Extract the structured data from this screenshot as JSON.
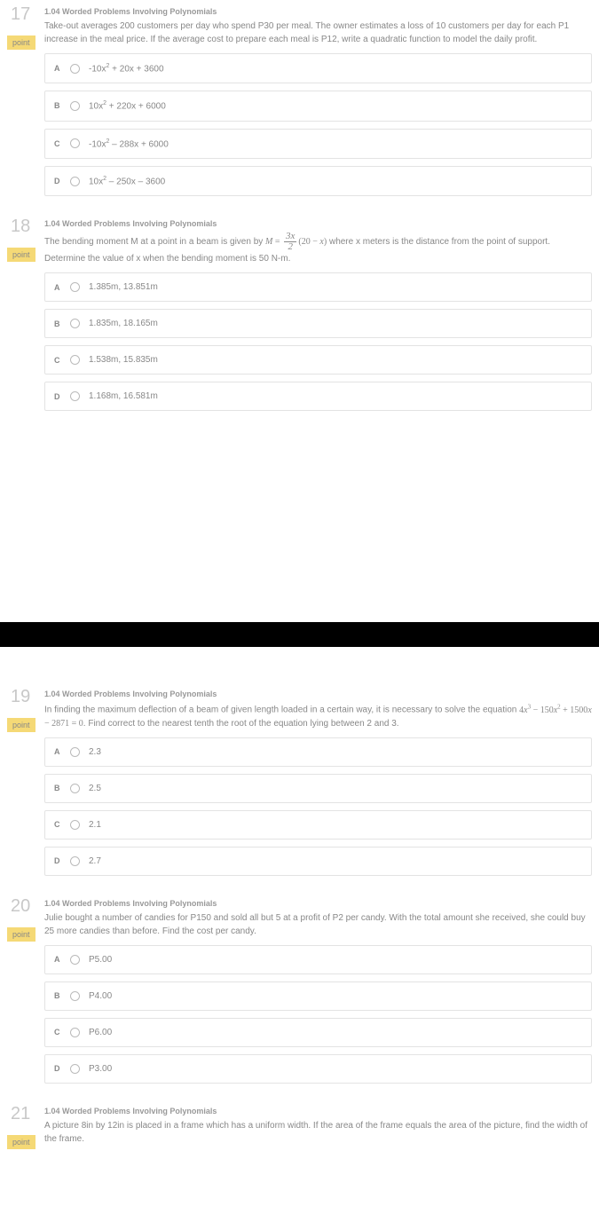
{
  "colors": {
    "text": "#888888",
    "muted_num": "#c8c8c8",
    "border": "#e3e3e3",
    "badge_bg": "#f5d976",
    "divider": "#000000",
    "bg": "#ffffff"
  },
  "typography": {
    "base_pt": 10,
    "qnum_pt": 20,
    "topic_pt": 9
  },
  "questions": [
    {
      "number": "17",
      "badge": "point",
      "topic": "1.04 Worded Problems Involving Polynomials",
      "prompt_parts": [
        "Take-out averages 200 customers per day who spend P30 per meal. The owner estimates a loss of 10 customers per day for each P1 increase in the meal price. If the average cost to prepare each meal is P12, write a quadratic function to model the daily profit."
      ],
      "choices": [
        {
          "letter": "A",
          "text_html": "-10x<span class='sup'>2</span> + 20x + 3600"
        },
        {
          "letter": "B",
          "text_html": "10x<span class='sup'>2</span> + 220x + 6000"
        },
        {
          "letter": "C",
          "text_html": "-10x<span class='sup'>2</span> – 288x + 6000"
        },
        {
          "letter": "D",
          "text_html": "10x<span class='sup'>2</span> – 250x – 3600"
        }
      ]
    },
    {
      "number": "18",
      "badge": "point",
      "topic": "1.04 Worded Problems Involving Polynomials",
      "prompt_html": "The bending moment M at a point in a beam is given by <span class='eqwrap'><span class='math-i'>M</span> = <span class='frac'><span class='num'>3<span class='math-i'>x</span></span><span class='den'>2</span></span>(20 − <span class='math-i'>x</span>)</span> where x meters is the distance from the point of support. Determine the value of x when the bending moment is 50 N-m.",
      "choices": [
        {
          "letter": "A",
          "text": "1.385m, 13.851m"
        },
        {
          "letter": "B",
          "text": "1.835m, 18.165m"
        },
        {
          "letter": "C",
          "text": "1.538m, 15.835m"
        },
        {
          "letter": "D",
          "text": "1.168m, 16.581m"
        }
      ]
    },
    {
      "number": "19",
      "badge": "point",
      "topic": "1.04 Worded Problems Involving Polynomials",
      "prompt_html": "In finding the maximum deflection of a beam of given length loaded in a certain way, it is necessary to solve the equation <span class='eqwrap'>4<span class='math-i'>x</span><span class='sup'>3</span> − 150<span class='math-i'>x</span><span class='sup'>2</span> + 1500<span class='math-i'>x</span> − 2871 = 0</span>. Find correct to the nearest tenth the root of the equation lying between 2 and 3.",
      "choices": [
        {
          "letter": "A",
          "text": "2.3"
        },
        {
          "letter": "B",
          "text": "2.5"
        },
        {
          "letter": "C",
          "text": "2.1"
        },
        {
          "letter": "D",
          "text": "2.7"
        }
      ]
    },
    {
      "number": "20",
      "badge": "point",
      "topic": "1.04 Worded Problems Involving Polynomials",
      "prompt_parts": [
        "Julie bought a number of candies for P150 and sold all but 5 at a profit of P2 per candy. With the total amount she received, she could buy 25 more candies than before. Find the cost per candy."
      ],
      "choices": [
        {
          "letter": "A",
          "text": "P5.00"
        },
        {
          "letter": "B",
          "text": "P4.00"
        },
        {
          "letter": "C",
          "text": "P6.00"
        },
        {
          "letter": "D",
          "text": "P3.00"
        }
      ]
    },
    {
      "number": "21",
      "badge": "point",
      "topic": "1.04 Worded Problems Involving Polynomials",
      "prompt_parts": [
        "A picture 8in by 12in is placed in a frame which has a uniform width. If the area of the frame equals the area of the picture, find the width of the frame."
      ],
      "choices": []
    }
  ],
  "layout": {
    "divider_after_index": 1,
    "big_spacer_after_index": 1
  }
}
